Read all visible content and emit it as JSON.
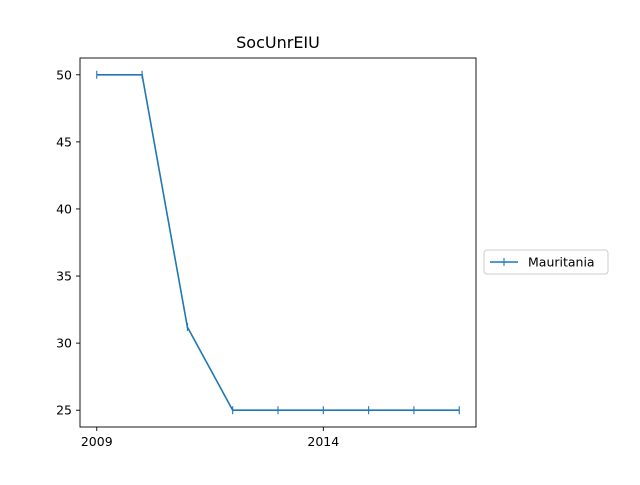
{
  "chart_data": {
    "type": "line",
    "title": "SocUnrEIU",
    "xlabel": "",
    "ylabel": "",
    "x": [
      2009,
      2010,
      2011,
      2012,
      2013,
      2014,
      2015,
      2016,
      2017
    ],
    "series": [
      {
        "name": "Mauritania",
        "values": [
          50,
          50,
          31.2,
          25,
          25,
          25,
          25,
          25,
          25
        ],
        "color": "#1f77b4",
        "marker": "vertical-tick"
      }
    ],
    "xticks": [
      2009,
      2014
    ],
    "yticks": [
      25,
      30,
      35,
      40,
      45,
      50
    ],
    "xlim": [
      2008.63,
      2017.37
    ],
    "ylim": [
      23.75,
      51.25
    ],
    "grid": false,
    "legend_position": "right-outside"
  }
}
